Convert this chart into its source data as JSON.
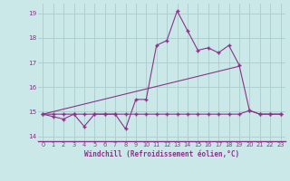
{
  "background_color": "#cbe8e8",
  "grid_color": "#aacccc",
  "line_color": "#883388",
  "xlim": [
    -0.5,
    23.5
  ],
  "ylim": [
    13.8,
    19.4
  ],
  "yticks": [
    14,
    15,
    16,
    17,
    18,
    19
  ],
  "xticks": [
    0,
    1,
    2,
    3,
    4,
    5,
    6,
    7,
    8,
    9,
    10,
    11,
    12,
    13,
    14,
    15,
    16,
    17,
    18,
    19,
    20,
    21,
    22,
    23
  ],
  "xlabel": "Windchill (Refroidissement éolien,°C)",
  "series_flat": {
    "x": [
      0,
      1,
      2,
      3,
      4,
      5,
      6,
      7,
      8,
      9,
      10,
      11,
      12,
      13,
      14,
      15,
      16,
      17,
      18,
      19,
      20,
      21,
      22,
      23
    ],
    "y": [
      14.9,
      14.9,
      14.9,
      14.9,
      14.9,
      14.9,
      14.9,
      14.9,
      14.9,
      14.9,
      14.9,
      14.9,
      14.9,
      14.9,
      14.9,
      14.9,
      14.9,
      14.9,
      14.9,
      14.9,
      15.05,
      14.9,
      14.9,
      14.9
    ]
  },
  "series_temp": {
    "x": [
      0,
      1,
      2,
      3,
      4,
      5,
      6,
      7,
      8,
      9,
      10,
      11,
      12,
      13,
      14,
      15,
      16,
      17,
      18,
      19,
      20,
      21,
      22,
      23
    ],
    "y": [
      14.9,
      14.8,
      14.7,
      14.9,
      14.4,
      14.9,
      14.9,
      14.9,
      14.3,
      15.5,
      15.5,
      17.7,
      17.9,
      19.1,
      18.3,
      17.5,
      17.6,
      17.4,
      17.7,
      16.9,
      15.05,
      14.9,
      14.9,
      14.9
    ]
  },
  "series_diag": {
    "x": [
      0,
      19
    ],
    "y": [
      14.9,
      16.85
    ]
  }
}
